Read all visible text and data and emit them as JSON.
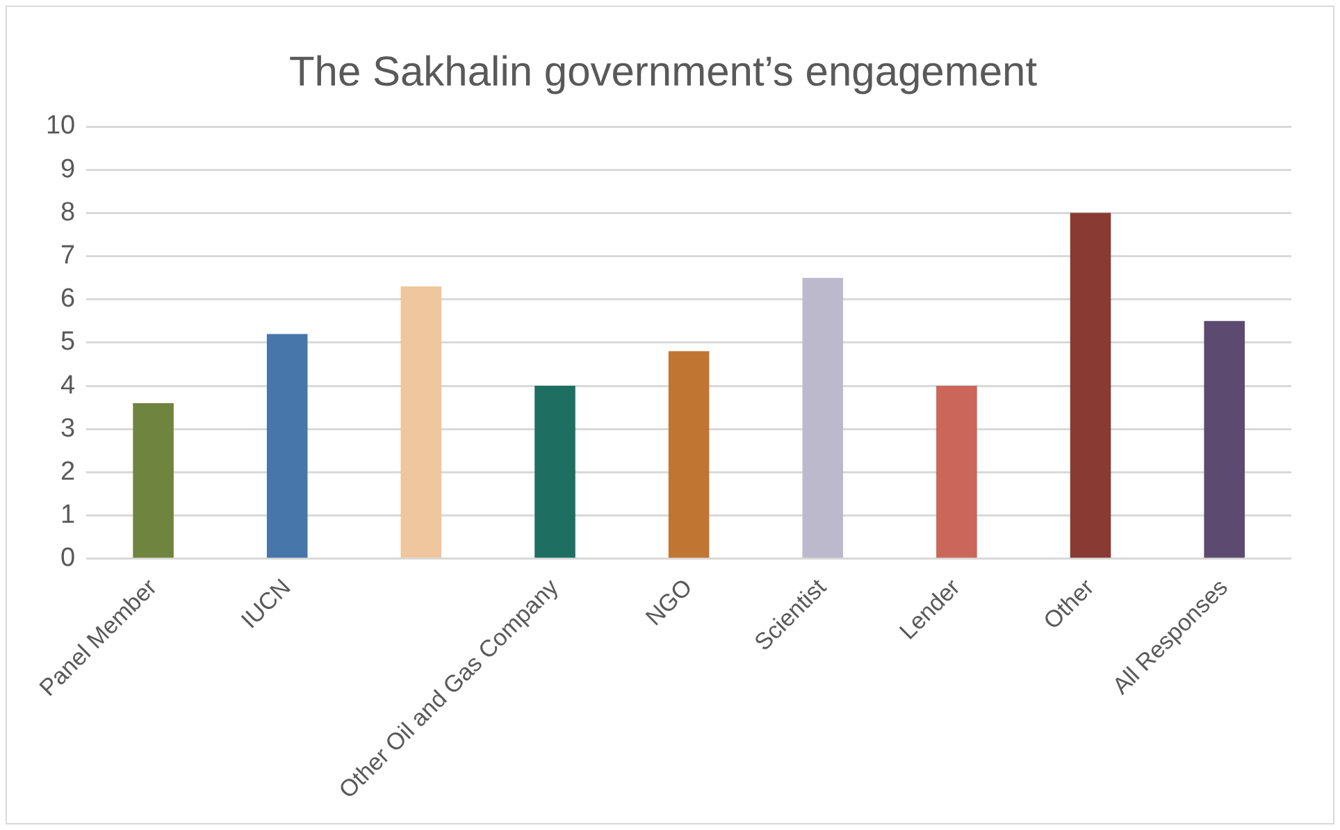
{
  "chart_data": {
    "type": "bar",
    "title": "The Sakhalin government’s engagement",
    "categories": [
      "Panel Member",
      "IUCN",
      null,
      "Other Oil and Gas Company",
      "NGO",
      "Scientist",
      "Lender",
      "Other",
      "All Responses"
    ],
    "values": [
      3.6,
      5.2,
      6.3,
      4.0,
      4.8,
      6.5,
      4.0,
      8.0,
      5.5
    ],
    "colors": [
      "#6f843e",
      "#4676aa",
      "#efc69d",
      "#1e6f61",
      "#c17532",
      "#bdb9cd",
      "#cb665a",
      "#883a33",
      "#5c4a70"
    ],
    "ylim": [
      0,
      10
    ],
    "yticks": [
      0,
      1,
      2,
      3,
      4,
      5,
      6,
      7,
      8,
      9,
      10
    ],
    "grid": "y",
    "legend": false
  }
}
